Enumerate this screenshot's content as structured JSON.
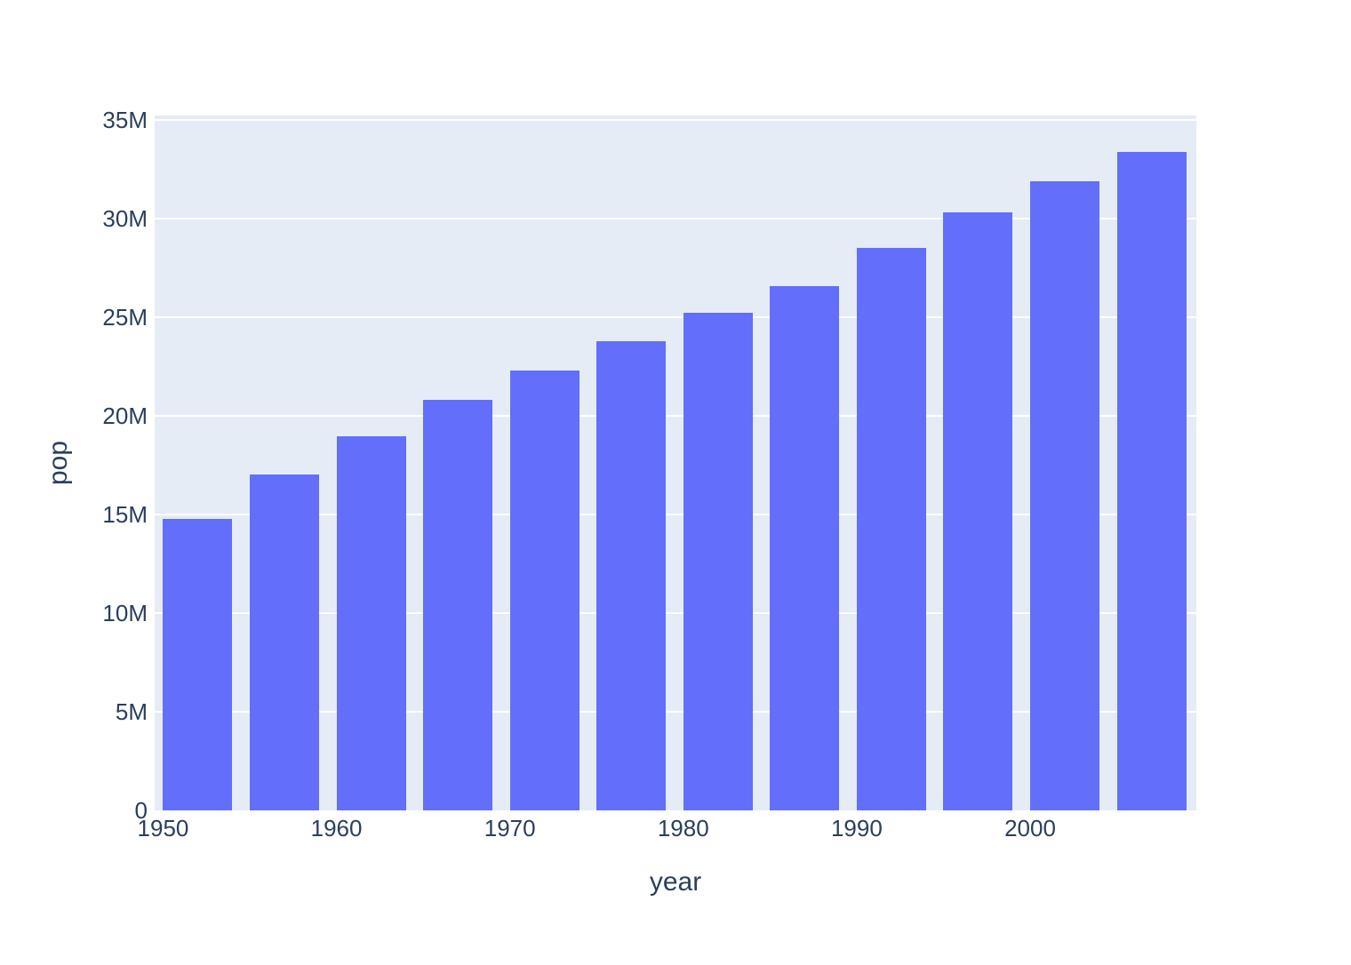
{
  "chart_data": {
    "type": "bar",
    "title": "",
    "xlabel": "year",
    "ylabel": "pop",
    "x": [
      1952,
      1957,
      1962,
      1967,
      1972,
      1977,
      1982,
      1987,
      1992,
      1997,
      2002,
      2007
    ],
    "series": [
      {
        "name": "pop",
        "values": [
          14785584,
          17010154,
          18985849,
          20819767,
          22284500,
          23796400,
          25201900,
          26549700,
          28523502,
          30305843,
          31902268,
          33390141
        ]
      }
    ],
    "bar_width_years": 4,
    "xlim": [
      1949.5,
      2009.6
    ],
    "ylim": [
      0,
      35200000
    ],
    "x_ticks": [
      1950,
      1960,
      1970,
      1980,
      1990,
      2000
    ],
    "x_tick_labels": [
      "1950",
      "1960",
      "1970",
      "1980",
      "1990",
      "2000"
    ],
    "y_ticks": [
      0,
      5000000,
      10000000,
      15000000,
      20000000,
      25000000,
      30000000,
      35000000
    ],
    "y_tick_labels": [
      "0",
      "5M",
      "10M",
      "15M",
      "20M",
      "25M",
      "30M",
      "35M"
    ],
    "grid": true,
    "legend": false
  },
  "colors": {
    "bar": "#636EFA",
    "plot_bg": "#E5ECF6",
    "grid": "#FFFFFF",
    "text": "#2A3F5F",
    "page_bg": "#FFFFFF"
  }
}
